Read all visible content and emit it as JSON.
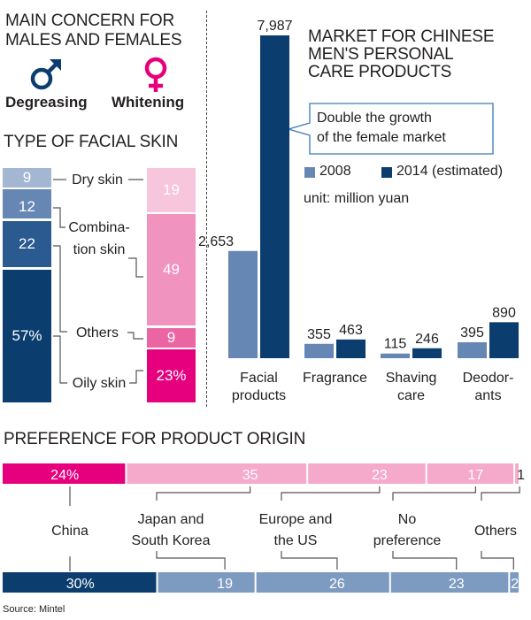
{
  "left": {
    "title_line1": "MAIN CONCERN FOR",
    "title_line2": "MALES AND FEMALES",
    "male": {
      "symbol": "♂",
      "concern": "Degreasing",
      "color": "#0b3e6f"
    },
    "female": {
      "symbol": "♀",
      "concern": "Whitening",
      "color": "#e6007e"
    },
    "skin_title": "TYPE OF FACIAL SKIN"
  },
  "right": {
    "title_line1": "MARKET FOR CHINESE",
    "title_line2": "MEN'S PERSONAL",
    "title_line3": "CARE PRODUCTS",
    "callout_line1": "Double the growth",
    "callout_line2": "of the female market",
    "unit": "unit: million yuan"
  },
  "bottom": {
    "title": "PREFERENCE FOR PRODUCT ORIGIN",
    "source": "Source: Mintel"
  },
  "chart_data": [
    {
      "type": "bar",
      "stacked": true,
      "title": "TYPE OF FACIAL SKIN",
      "unit": "percent",
      "categories": [
        "Dry skin",
        "Combination skin",
        "Others",
        "Oily skin"
      ],
      "category_labels": {
        "dry": "Dry skin",
        "combo1": "Combina-",
        "combo2": "tion skin",
        "others": "Others",
        "oily": "Oily skin"
      },
      "series": [
        {
          "name": "Male",
          "values": [
            9,
            12,
            22,
            57
          ],
          "order": [
            "Dry skin",
            "Combination skin",
            "Others",
            "Oily skin"
          ],
          "labels": [
            "9",
            "12",
            "22",
            "57%"
          ],
          "colors": [
            "#a3b6d2",
            "#6686b3",
            "#2a5a8f",
            "#0b3e6f"
          ]
        },
        {
          "name": "Female",
          "values": [
            19,
            49,
            9,
            23
          ],
          "order": [
            "Dry skin",
            "Combination skin",
            "Others",
            "Oily skin"
          ],
          "labels": [
            "19",
            "49",
            "9",
            "23%"
          ],
          "colors": [
            "#f7c6dc",
            "#f193bf",
            "#ec65a3",
            "#e6007e"
          ]
        }
      ]
    },
    {
      "type": "bar",
      "title": "MARKET FOR CHINESE MEN'S PERSONAL CARE PRODUCTS",
      "unit": "million yuan",
      "categories": [
        "Facial products",
        "Fragrance",
        "Shaving care",
        "Deodorants"
      ],
      "category_labels": [
        [
          "Facial",
          "products"
        ],
        [
          "Fragrance",
          ""
        ],
        [
          "Shaving",
          "care"
        ],
        [
          "Deodor-",
          "ants"
        ]
      ],
      "series": [
        {
          "name": "2008",
          "values": [
            2653,
            355,
            115,
            395
          ],
          "labels": [
            "2,653",
            "355",
            "115",
            "395"
          ],
          "color": "#6686b3"
        },
        {
          "name": "2014 (estimated)",
          "values": [
            7987,
            463,
            246,
            890
          ],
          "labels": [
            "7,987",
            "463",
            "246",
            "890"
          ],
          "color": "#0b3e6f"
        }
      ],
      "ylim": [
        0,
        7987
      ],
      "legend": "top-right",
      "annotation": "Double the growth of the female market"
    },
    {
      "type": "bar",
      "stacked": true,
      "orientation": "horizontal",
      "title": "PREFERENCE FOR PRODUCT ORIGIN",
      "unit": "percent",
      "categories": [
        "China",
        "Japan and South Korea",
        "Europe and the US",
        "No preference",
        "Others"
      ],
      "category_labels": [
        [
          "China",
          ""
        ],
        [
          "Japan and",
          "South Korea"
        ],
        [
          "Europe and",
          "the US"
        ],
        [
          "No",
          "preference"
        ],
        [
          "Others",
          ""
        ]
      ],
      "series": [
        {
          "name": "Female",
          "values": [
            24,
            35,
            23,
            17,
            1
          ],
          "labels": [
            "24%",
            "35",
            "23",
            "17",
            "1"
          ],
          "colors": [
            "#e6007e",
            "#f5a9cb",
            "#f5a9cb",
            "#f5a9cb",
            "#f5a9cb"
          ]
        },
        {
          "name": "Male",
          "values": [
            30,
            19,
            26,
            23,
            2
          ],
          "labels": [
            "30%",
            "19",
            "26",
            "23",
            "2"
          ],
          "colors": [
            "#0b3e6f",
            "#7d9bc1",
            "#7d9bc1",
            "#7d9bc1",
            "#7d9bc1"
          ]
        }
      ]
    }
  ]
}
